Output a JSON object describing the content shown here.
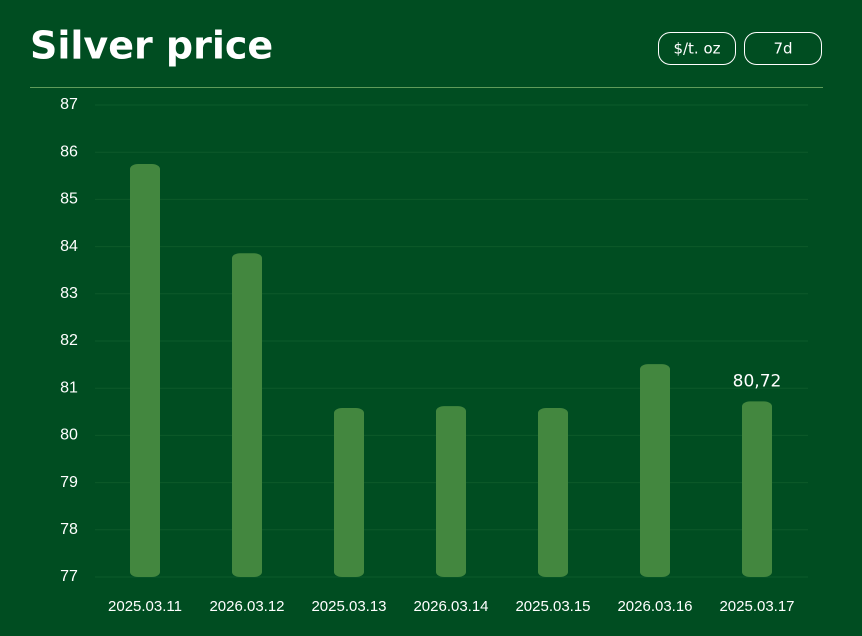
{
  "controls": {
    "unit": "$/t. oz",
    "range": "7d"
  },
  "chart_data": {
    "type": "bar",
    "title": "Silver price",
    "categories": [
      "2025.03.11",
      "2026.03.12",
      "2025.03.13",
      "2026.03.14",
      "2025.03.15",
      "2026.03.16",
      "2025.03.17"
    ],
    "values": [
      85.75,
      83.86,
      80.58,
      80.62,
      80.58,
      81.51,
      80.72
    ],
    "value_labels": [
      null,
      null,
      null,
      null,
      null,
      null,
      "80,72"
    ],
    "color": "#43873f",
    "ylim": [
      77,
      87
    ],
    "yticks": [
      77,
      78,
      79,
      80,
      81,
      82,
      83,
      84,
      85,
      86,
      87
    ],
    "grid": true
  }
}
